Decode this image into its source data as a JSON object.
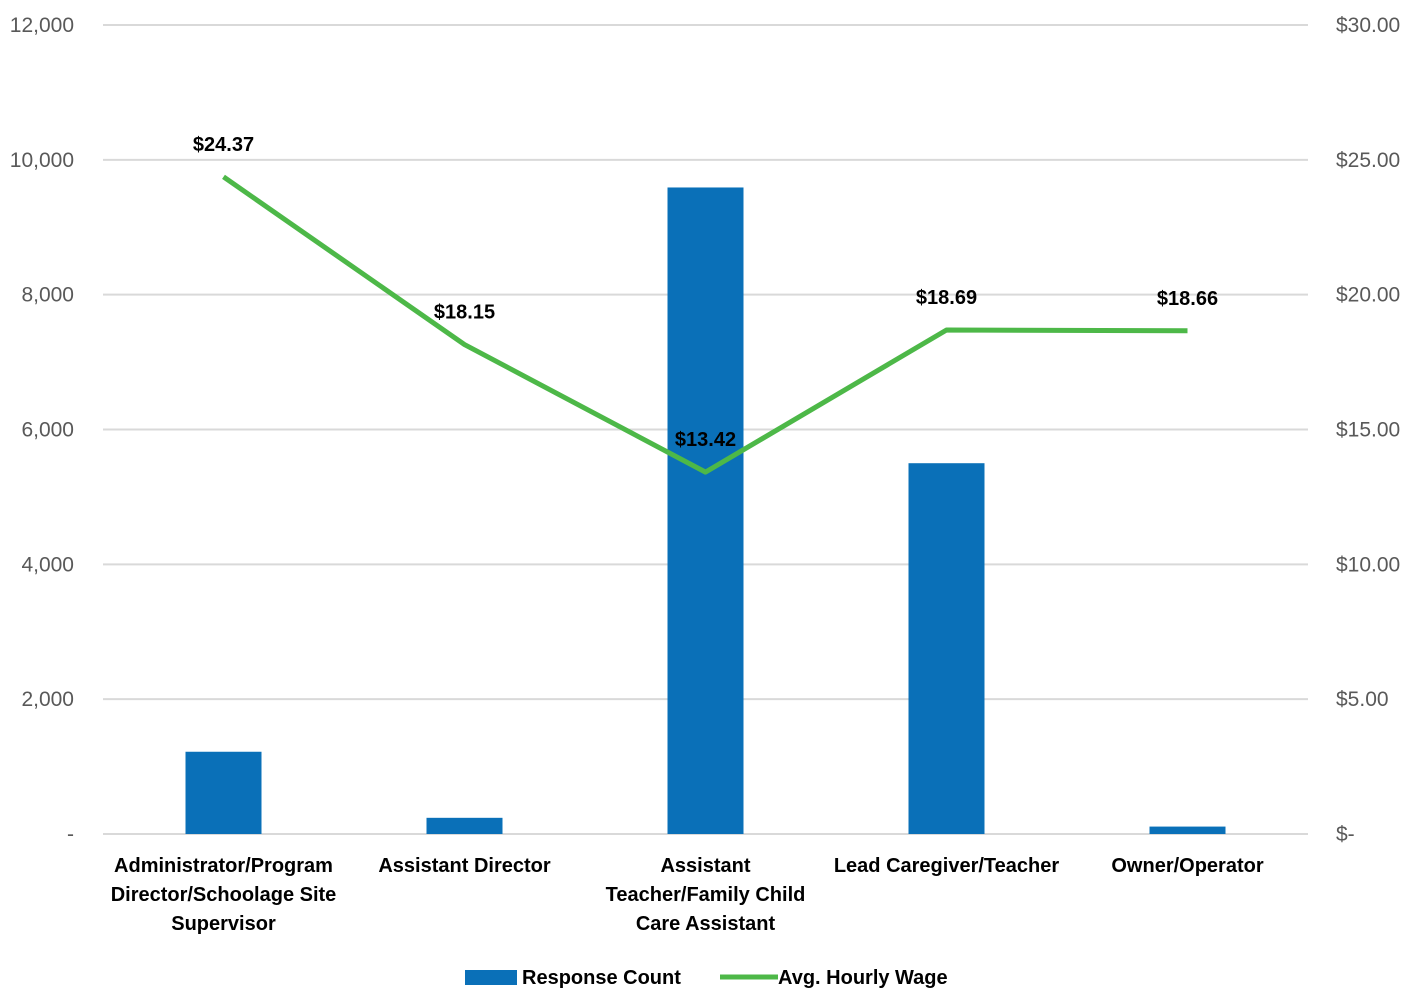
{
  "chart_data": {
    "type": "bar",
    "categories": [
      "Administrator/Program Director/Schoolage Site Supervisor",
      "Assistant Director",
      "Assistant Teacher/Family Child Care Assistant",
      "Lead Caregiver/Teacher",
      "Owner/Operator"
    ],
    "category_label_lines": [
      [
        "Administrator/Program",
        "Director/Schoolage Site",
        "Supervisor"
      ],
      [
        "Assistant Director"
      ],
      [
        "Assistant",
        "Teacher/Family Child",
        "Care Assistant"
      ],
      [
        "Lead Caregiver/Teacher"
      ],
      [
        "Owner/Operator"
      ]
    ],
    "series": [
      {
        "name": "Response Count",
        "type": "bar",
        "axis": "left",
        "color": "#0A70B8",
        "values": [
          1220,
          240,
          9590,
          5500,
          110
        ]
      },
      {
        "name": "Avg. Hourly Wage",
        "type": "line",
        "axis": "right",
        "color": "#4DB848",
        "values": [
          24.37,
          18.15,
          13.42,
          18.69,
          18.66
        ],
        "data_labels": [
          "$24.37",
          "$18.15",
          "$13.42",
          "$18.69",
          "$18.66"
        ]
      }
    ],
    "left_axis": {
      "ylim": [
        0,
        12000
      ],
      "ticks": [
        0,
        2000,
        4000,
        6000,
        8000,
        10000,
        12000
      ],
      "tick_labels": [
        "-",
        "2,000",
        "4,000",
        "6,000",
        "8,000",
        "10,000",
        "12,000"
      ]
    },
    "right_axis": {
      "ylim": [
        0,
        30
      ],
      "ticks": [
        0,
        5,
        10,
        15,
        20,
        25,
        30
      ],
      "tick_labels": [
        "$-",
        "$5.00",
        "$10.00",
        "$15.00",
        "$20.00",
        "$25.00",
        "$30.00"
      ]
    },
    "grid": true,
    "legend_position": "bottom-center",
    "gridline_color": "#D9D9D9"
  }
}
